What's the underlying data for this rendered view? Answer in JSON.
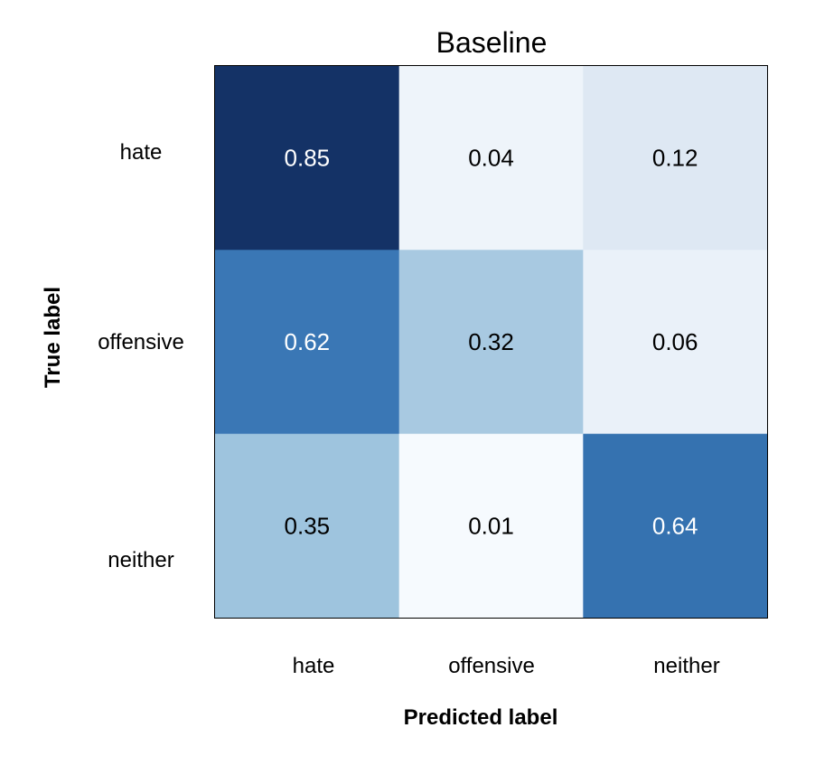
{
  "chart_data": {
    "type": "heatmap",
    "title": "Baseline",
    "xlabel": "Predicted label",
    "ylabel": "True label",
    "x_categories": [
      "hate",
      "offensive",
      "neither"
    ],
    "y_categories": [
      "hate",
      "offensive",
      "neither"
    ],
    "values": [
      [
        0.85,
        0.04,
        0.12
      ],
      [
        0.62,
        0.32,
        0.06
      ],
      [
        0.35,
        0.01,
        0.64
      ]
    ],
    "value_labels": [
      [
        "0.85",
        "0.04",
        "0.12"
      ],
      [
        "0.62",
        "0.32",
        "0.06"
      ],
      [
        "0.35",
        "0.01",
        "0.64"
      ]
    ],
    "colormap": "Blues",
    "cell_colors": [
      [
        "#143266",
        "#eef4fa",
        "#dee8f3"
      ],
      [
        "#3a77b5",
        "#a8c9e1",
        "#eaf1f9"
      ],
      [
        "#9ec4de",
        "#f6fafe",
        "#3572b0"
      ]
    ],
    "text_colors": [
      [
        "#ffffff",
        "#000000",
        "#000000"
      ],
      [
        "#ffffff",
        "#000000",
        "#000000"
      ],
      [
        "#000000",
        "#000000",
        "#ffffff"
      ]
    ],
    "grid": false,
    "legend": "none"
  }
}
